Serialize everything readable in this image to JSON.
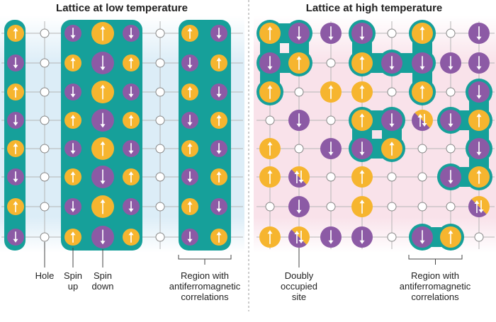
{
  "left": {
    "title": [
      "Lattice at",
      "low",
      "temperature"
    ],
    "labels": {
      "hole": [
        "Hole"
      ],
      "spin_up": [
        "Spin",
        "up"
      ],
      "spin_down": [
        "Spin",
        "down"
      ],
      "region": [
        "Region with",
        "antiferromagnetic",
        "correlations"
      ]
    }
  },
  "right": {
    "title": [
      "Lattice at",
      "high",
      "temperature"
    ],
    "labels": {
      "doubly": [
        "Doubly",
        "occupied",
        "site"
      ],
      "region": [
        "Region with",
        "antiferromagnetic",
        "correlations"
      ]
    }
  }
}
